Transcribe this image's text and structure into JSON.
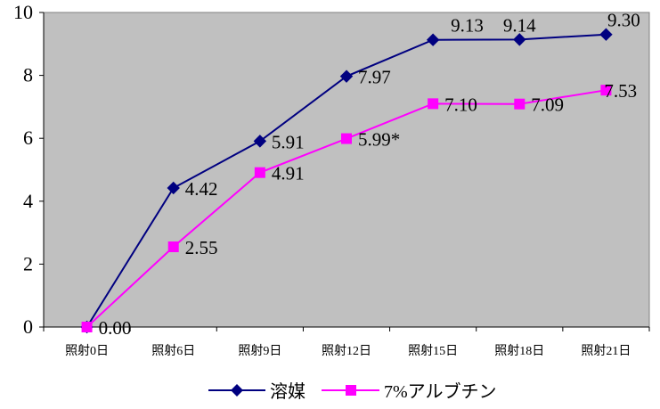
{
  "chart_data": {
    "type": "line",
    "categories": [
      "照射0日",
      "照射6日",
      "照射9日",
      "照射12日",
      "照射15日",
      "照射18日",
      "照射21日"
    ],
    "series": [
      {
        "name": "溶媒",
        "values": [
          0.0,
          4.42,
          5.91,
          7.97,
          9.13,
          9.14,
          9.3
        ],
        "labels": [
          "",
          "4.42",
          "5.91",
          "7.97",
          "9.13",
          "9.14",
          "9.30"
        ],
        "color": "#000080",
        "marker": "diamond"
      },
      {
        "name": "7%アルブチン",
        "values": [
          0.0,
          2.55,
          4.91,
          5.99,
          7.1,
          7.09,
          7.53
        ],
        "labels": [
          "0.00",
          "2.55",
          "4.91",
          "5.99*",
          "7.10",
          "7.09",
          "7.53"
        ],
        "color": "#FF00FF",
        "marker": "square"
      }
    ],
    "ylim": [
      0,
      10
    ],
    "yticks": [
      "0",
      "2",
      "4",
      "6",
      "8",
      "10"
    ],
    "grid": false,
    "plot_background": "#C0C0C0",
    "legend_position": "bottom"
  }
}
